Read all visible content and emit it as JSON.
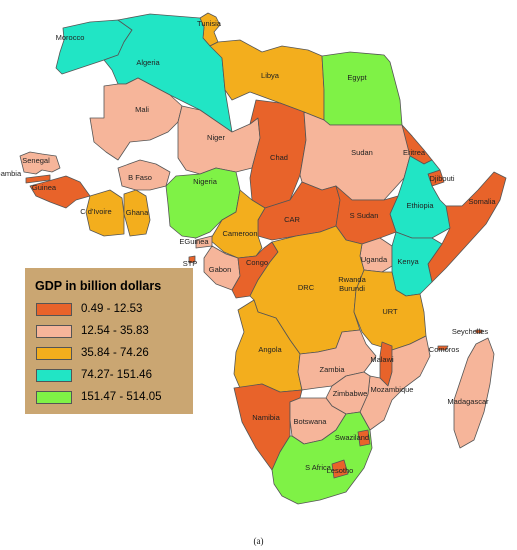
{
  "map": {
    "legend": {
      "title": "GDP in billion dollars",
      "classes": [
        {
          "label": "0.49 - 12.53",
          "color": "#e8632a"
        },
        {
          "label": "12.54 - 35.83",
          "color": "#f6b59a"
        },
        {
          "label": "35.84 - 74.26",
          "color": "#f3ae1d"
        },
        {
          "label": "74.27- 151.46",
          "color": "#21e5c5"
        },
        {
          "label": "151.47 - 514.05",
          "color": "#7ff246"
        }
      ]
    },
    "countries": [
      {
        "label": "Tunisia",
        "class": 2
      },
      {
        "label": "Morocco",
        "class": 3
      },
      {
        "label": "Algeria",
        "class": 3
      },
      {
        "label": "Libya",
        "class": 2
      },
      {
        "label": "Egypt",
        "class": 4
      },
      {
        "label": "Mali",
        "class": 1
      },
      {
        "label": "Niger",
        "class": 1
      },
      {
        "label": "Chad",
        "class": 0
      },
      {
        "label": "Sudan",
        "class": 1
      },
      {
        "label": "Eritrea",
        "class": 0
      },
      {
        "label": "Djibouti",
        "class": 0
      },
      {
        "label": "Senegal",
        "class": 1
      },
      {
        "label": "Gambia",
        "class": 0
      },
      {
        "label": "Guinea",
        "class": 0
      },
      {
        "label": "B Faso",
        "class": 1
      },
      {
        "label": "C d'Ivoire",
        "class": 2
      },
      {
        "label": "Ghana",
        "class": 2
      },
      {
        "label": "Nigeria",
        "class": 4
      },
      {
        "label": "Ethiopia",
        "class": 3
      },
      {
        "label": "Somalia",
        "class": 0
      },
      {
        "label": "CAR",
        "class": 0
      },
      {
        "label": "S Sudan",
        "class": 0
      },
      {
        "label": "Cameroon",
        "class": 2
      },
      {
        "label": "EGuinea",
        "class": 1
      },
      {
        "label": "STP",
        "class": 0
      },
      {
        "label": "Gabon",
        "class": 1
      },
      {
        "label": "Congo",
        "class": 0
      },
      {
        "label": "Uganda",
        "class": 1
      },
      {
        "label": "Kenya",
        "class": 3
      },
      {
        "label": "Rwanda",
        "class": 0
      },
      {
        "label": "Burundi",
        "class": 0
      },
      {
        "label": "DRC",
        "class": 2
      },
      {
        "label": "URT",
        "class": 2
      },
      {
        "label": "Angola",
        "class": 2
      },
      {
        "label": "Zambia",
        "class": 1
      },
      {
        "label": "Malawi",
        "class": 0
      },
      {
        "label": "Mozambique",
        "class": 1
      },
      {
        "label": "Zimbabwe",
        "class": 1
      },
      {
        "label": "Namibia",
        "class": 0
      },
      {
        "label": "Botswana",
        "class": 1
      },
      {
        "label": "S Africa",
        "class": 4
      },
      {
        "label": "Swaziland",
        "class": 0
      },
      {
        "label": "Lesotho",
        "class": 0
      },
      {
        "label": "Madagascar",
        "class": 1
      },
      {
        "label": "Comoros",
        "class": 0
      },
      {
        "label": "Seychelles",
        "class": 0
      }
    ],
    "caption": "(a)"
  }
}
